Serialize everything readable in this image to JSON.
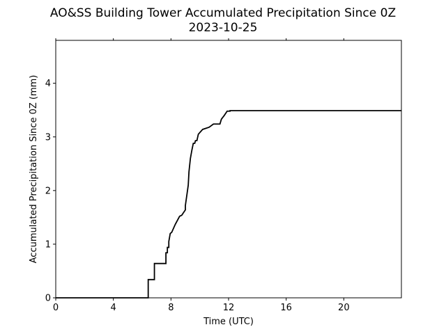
{
  "chart_data": {
    "type": "line",
    "title": "AO&SS Building Tower Accumulated Precipitation Since 0Z",
    "subtitle": "2023-10-25",
    "xlabel": "Time (UTC)",
    "ylabel": "Accumulated Precipitation Since 0Z (mm)",
    "xlim": [
      0,
      24
    ],
    "ylim": [
      0,
      4.8
    ],
    "x_ticks": [
      0,
      4,
      8,
      12,
      16,
      20
    ],
    "y_ticks": [
      0,
      1,
      2,
      3,
      4
    ],
    "x_tick_labels": [
      "0",
      "4",
      "8",
      "12",
      "16",
      "20"
    ],
    "y_tick_labels": [
      "0",
      "1",
      "2",
      "3",
      "4"
    ],
    "grid": false,
    "line_color": "#000000",
    "series": [
      {
        "x": [
          0,
          6.42,
          6.42,
          6.85,
          6.85,
          7.65,
          7.65,
          7.75,
          7.75,
          7.85,
          7.85,
          7.95,
          8.05,
          8.05,
          8.3,
          8.3,
          8.6,
          8.6,
          8.75,
          8.75,
          9.0,
          9.0,
          9.2,
          9.25,
          9.35,
          9.45,
          9.55,
          9.65,
          9.7,
          9.8,
          9.9,
          9.9,
          10.2,
          10.2,
          10.65,
          10.65,
          10.95,
          10.95,
          11.4,
          11.5,
          11.7,
          11.9,
          12.1,
          12.1,
          24
        ],
        "y": [
          0,
          0,
          0.34,
          0.34,
          0.64,
          0.64,
          0.84,
          0.84,
          0.94,
          0.94,
          1.05,
          1.2,
          1.22,
          1.22,
          1.37,
          1.37,
          1.52,
          1.52,
          1.54,
          1.54,
          1.64,
          1.72,
          2.1,
          2.35,
          2.6,
          2.75,
          2.88,
          2.88,
          2.93,
          2.93,
          3.05,
          3.05,
          3.14,
          3.14,
          3.18,
          3.18,
          3.24,
          3.24,
          3.24,
          3.33,
          3.4,
          3.48,
          3.48,
          3.49,
          3.49
        ]
      }
    ]
  }
}
